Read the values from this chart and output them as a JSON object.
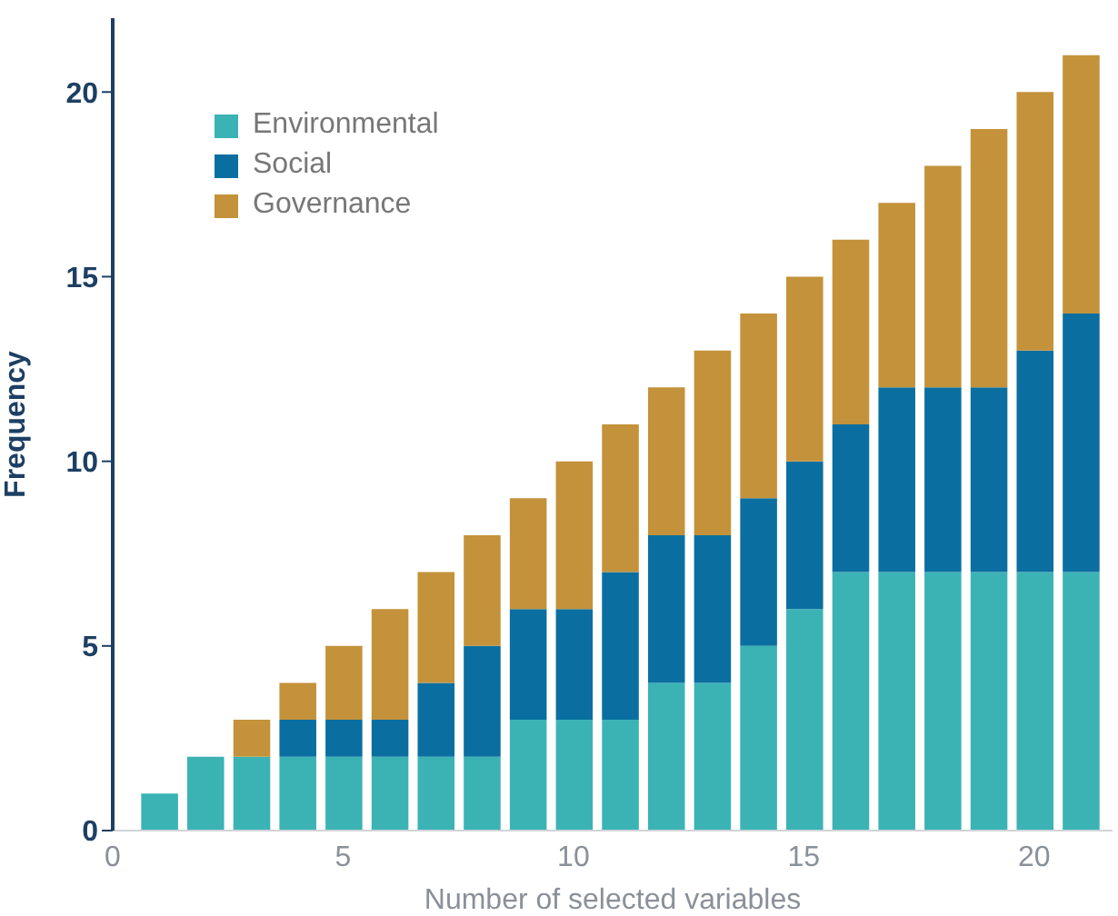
{
  "chart_data": {
    "type": "bar",
    "stacked": true,
    "xlabel": "Number of selected variables",
    "ylabel": "Frequency",
    "x": [
      1,
      2,
      3,
      4,
      5,
      6,
      7,
      8,
      9,
      10,
      11,
      12,
      13,
      14,
      15,
      16,
      17,
      18,
      19,
      20,
      21
    ],
    "series": [
      {
        "name": "Environmental",
        "color": "#3bb3b5",
        "values": [
          1,
          2,
          2,
          2,
          2,
          2,
          2,
          2,
          3,
          3,
          3,
          4,
          4,
          5,
          6,
          7,
          7,
          7,
          7,
          7,
          7
        ]
      },
      {
        "name": "Social",
        "color": "#0a6fa0",
        "values": [
          0,
          0,
          0,
          1,
          1,
          1,
          2,
          3,
          3,
          3,
          4,
          4,
          4,
          4,
          4,
          4,
          5,
          5,
          5,
          6,
          7
        ]
      },
      {
        "name": "Governance",
        "color": "#c4923a",
        "values": [
          0,
          0,
          1,
          1,
          2,
          3,
          3,
          3,
          3,
          4,
          4,
          4,
          5,
          5,
          5,
          5,
          5,
          6,
          7,
          7,
          7
        ]
      }
    ],
    "xlim": [
      0,
      21.7
    ],
    "xticks": [
      0,
      5,
      10,
      15,
      20
    ],
    "ylim": [
      0,
      22
    ],
    "yticks": [
      0,
      5,
      10,
      15,
      20
    ],
    "grid": false,
    "legend": "top left"
  }
}
